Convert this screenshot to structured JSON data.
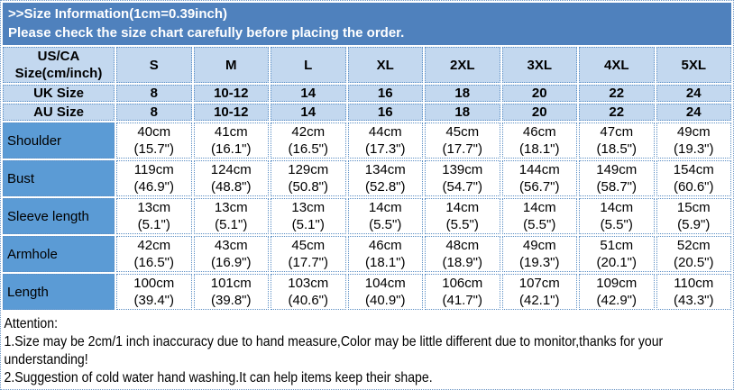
{
  "banner": {
    "line1": ">>Size Information(1cm=0.39inch)",
    "line2": "Please check the size chart carefully before placing the order."
  },
  "size_table": {
    "corner_label": "US/CA\nSize(cm/inch)",
    "size_headers": [
      "S",
      "M",
      "L",
      "XL",
      "2XL",
      "3XL",
      "4XL",
      "5XL"
    ],
    "uk_row": {
      "label": "UK Size",
      "values": [
        "8",
        "10-12",
        "14",
        "16",
        "18",
        "20",
        "22",
        "24"
      ]
    },
    "au_row": {
      "label": "AU Size",
      "values": [
        "8",
        "10-12",
        "14",
        "16",
        "18",
        "20",
        "22",
        "24"
      ]
    },
    "measurement_rows": [
      {
        "label": "Shoulder",
        "values": [
          "40cm\n(15.7\")",
          "41cm\n(16.1\")",
          "42cm\n(16.5\")",
          "44cm\n(17.3\")",
          "45cm\n(17.7\")",
          "46cm\n(18.1\")",
          "47cm\n(18.5\")",
          "49cm\n(19.3\")"
        ]
      },
      {
        "label": "Bust",
        "values": [
          "119cm\n(46.9\")",
          "124cm\n(48.8\")",
          "129cm\n(50.8\")",
          "134cm\n(52.8\")",
          "139cm\n(54.7\")",
          "144cm\n(56.7\")",
          "149cm\n(58.7\")",
          "154cm\n(60.6\")"
        ]
      },
      {
        "label": "Sleeve length",
        "values": [
          "13cm\n(5.1\")",
          "13cm\n(5.1\")",
          "13cm\n(5.1\")",
          "14cm\n(5.5\")",
          "14cm\n(5.5\")",
          "14cm\n(5.5\")",
          "14cm\n(5.5\")",
          "15cm\n(5.9\")"
        ]
      },
      {
        "label": "Armhole",
        "values": [
          "42cm\n(16.5\")",
          "43cm\n(16.9\")",
          "45cm\n(17.7\")",
          "46cm\n(18.1\")",
          "48cm\n(18.9\")",
          "49cm\n(19.3\")",
          "51cm\n(20.1\")",
          "52cm\n(20.5\")"
        ]
      },
      {
        "label": "Length",
        "values": [
          "100cm\n(39.4\")",
          "101cm\n(39.8\")",
          "103cm\n(40.6\")",
          "104cm\n(40.9\")",
          "106cm\n(41.7\")",
          "107cm\n(42.1\")",
          "109cm\n(42.9\")",
          "110cm\n(43.3\")"
        ]
      }
    ]
  },
  "attention": {
    "title": "Attention:",
    "lines": [
      "1.Size may be 2cm/1 inch inaccuracy due to hand measure,Color may be little different due to monitor,thanks for your",
      "understanding!",
      "2.Suggestion of cold water hand washing.It can help items keep their shape."
    ]
  },
  "colors": {
    "banner_bg": "#4f81bd",
    "banner_text": "#ffffff",
    "header_row_bg": "#c3d8ef",
    "label_column_bg": "#5b9bd5",
    "cell_border": "#5b8ec4",
    "body_text": "#000000"
  }
}
